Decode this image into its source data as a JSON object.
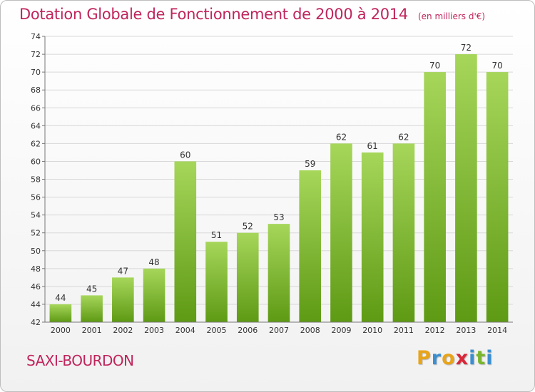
{
  "title": "Dotation Globale de Fonctionnement de 2000 à 2014",
  "subtitle": "(en milliers d'€)",
  "commune": "SAXI-BOURDON",
  "logo": {
    "letters": [
      "P",
      "r",
      "o",
      "x",
      "i",
      "t",
      "i"
    ],
    "colors": [
      "#e8a41a",
      "#3b8fd0",
      "#e8a41a",
      "#d8283a",
      "#3b8fd0",
      "#7ab62e",
      "#3b8fd0"
    ]
  },
  "colors": {
    "bar_top": "#a6d65a",
    "bar_bottom": "#5e9a14",
    "title": "#c0245c",
    "axis_text": "#333333",
    "grid": "#d8d8d8"
  },
  "chart_data": {
    "type": "bar",
    "title": "Dotation Globale de Fonctionnement de 2000 à 2014",
    "subtitle": "(en milliers d'€)",
    "categories": [
      "2000",
      "2001",
      "2002",
      "2003",
      "2004",
      "2005",
      "2006",
      "2007",
      "2008",
      "2009",
      "2010",
      "2011",
      "2012",
      "2013",
      "2014"
    ],
    "values": [
      44,
      45,
      47,
      48,
      60,
      51,
      52,
      53,
      59,
      62,
      61,
      62,
      70,
      72,
      70
    ],
    "ylim": [
      42,
      74
    ],
    "yticks": [
      42,
      44,
      46,
      48,
      50,
      52,
      54,
      56,
      58,
      60,
      62,
      64,
      66,
      68,
      70,
      72,
      74
    ],
    "grid": true,
    "xlabel": "",
    "ylabel": ""
  }
}
